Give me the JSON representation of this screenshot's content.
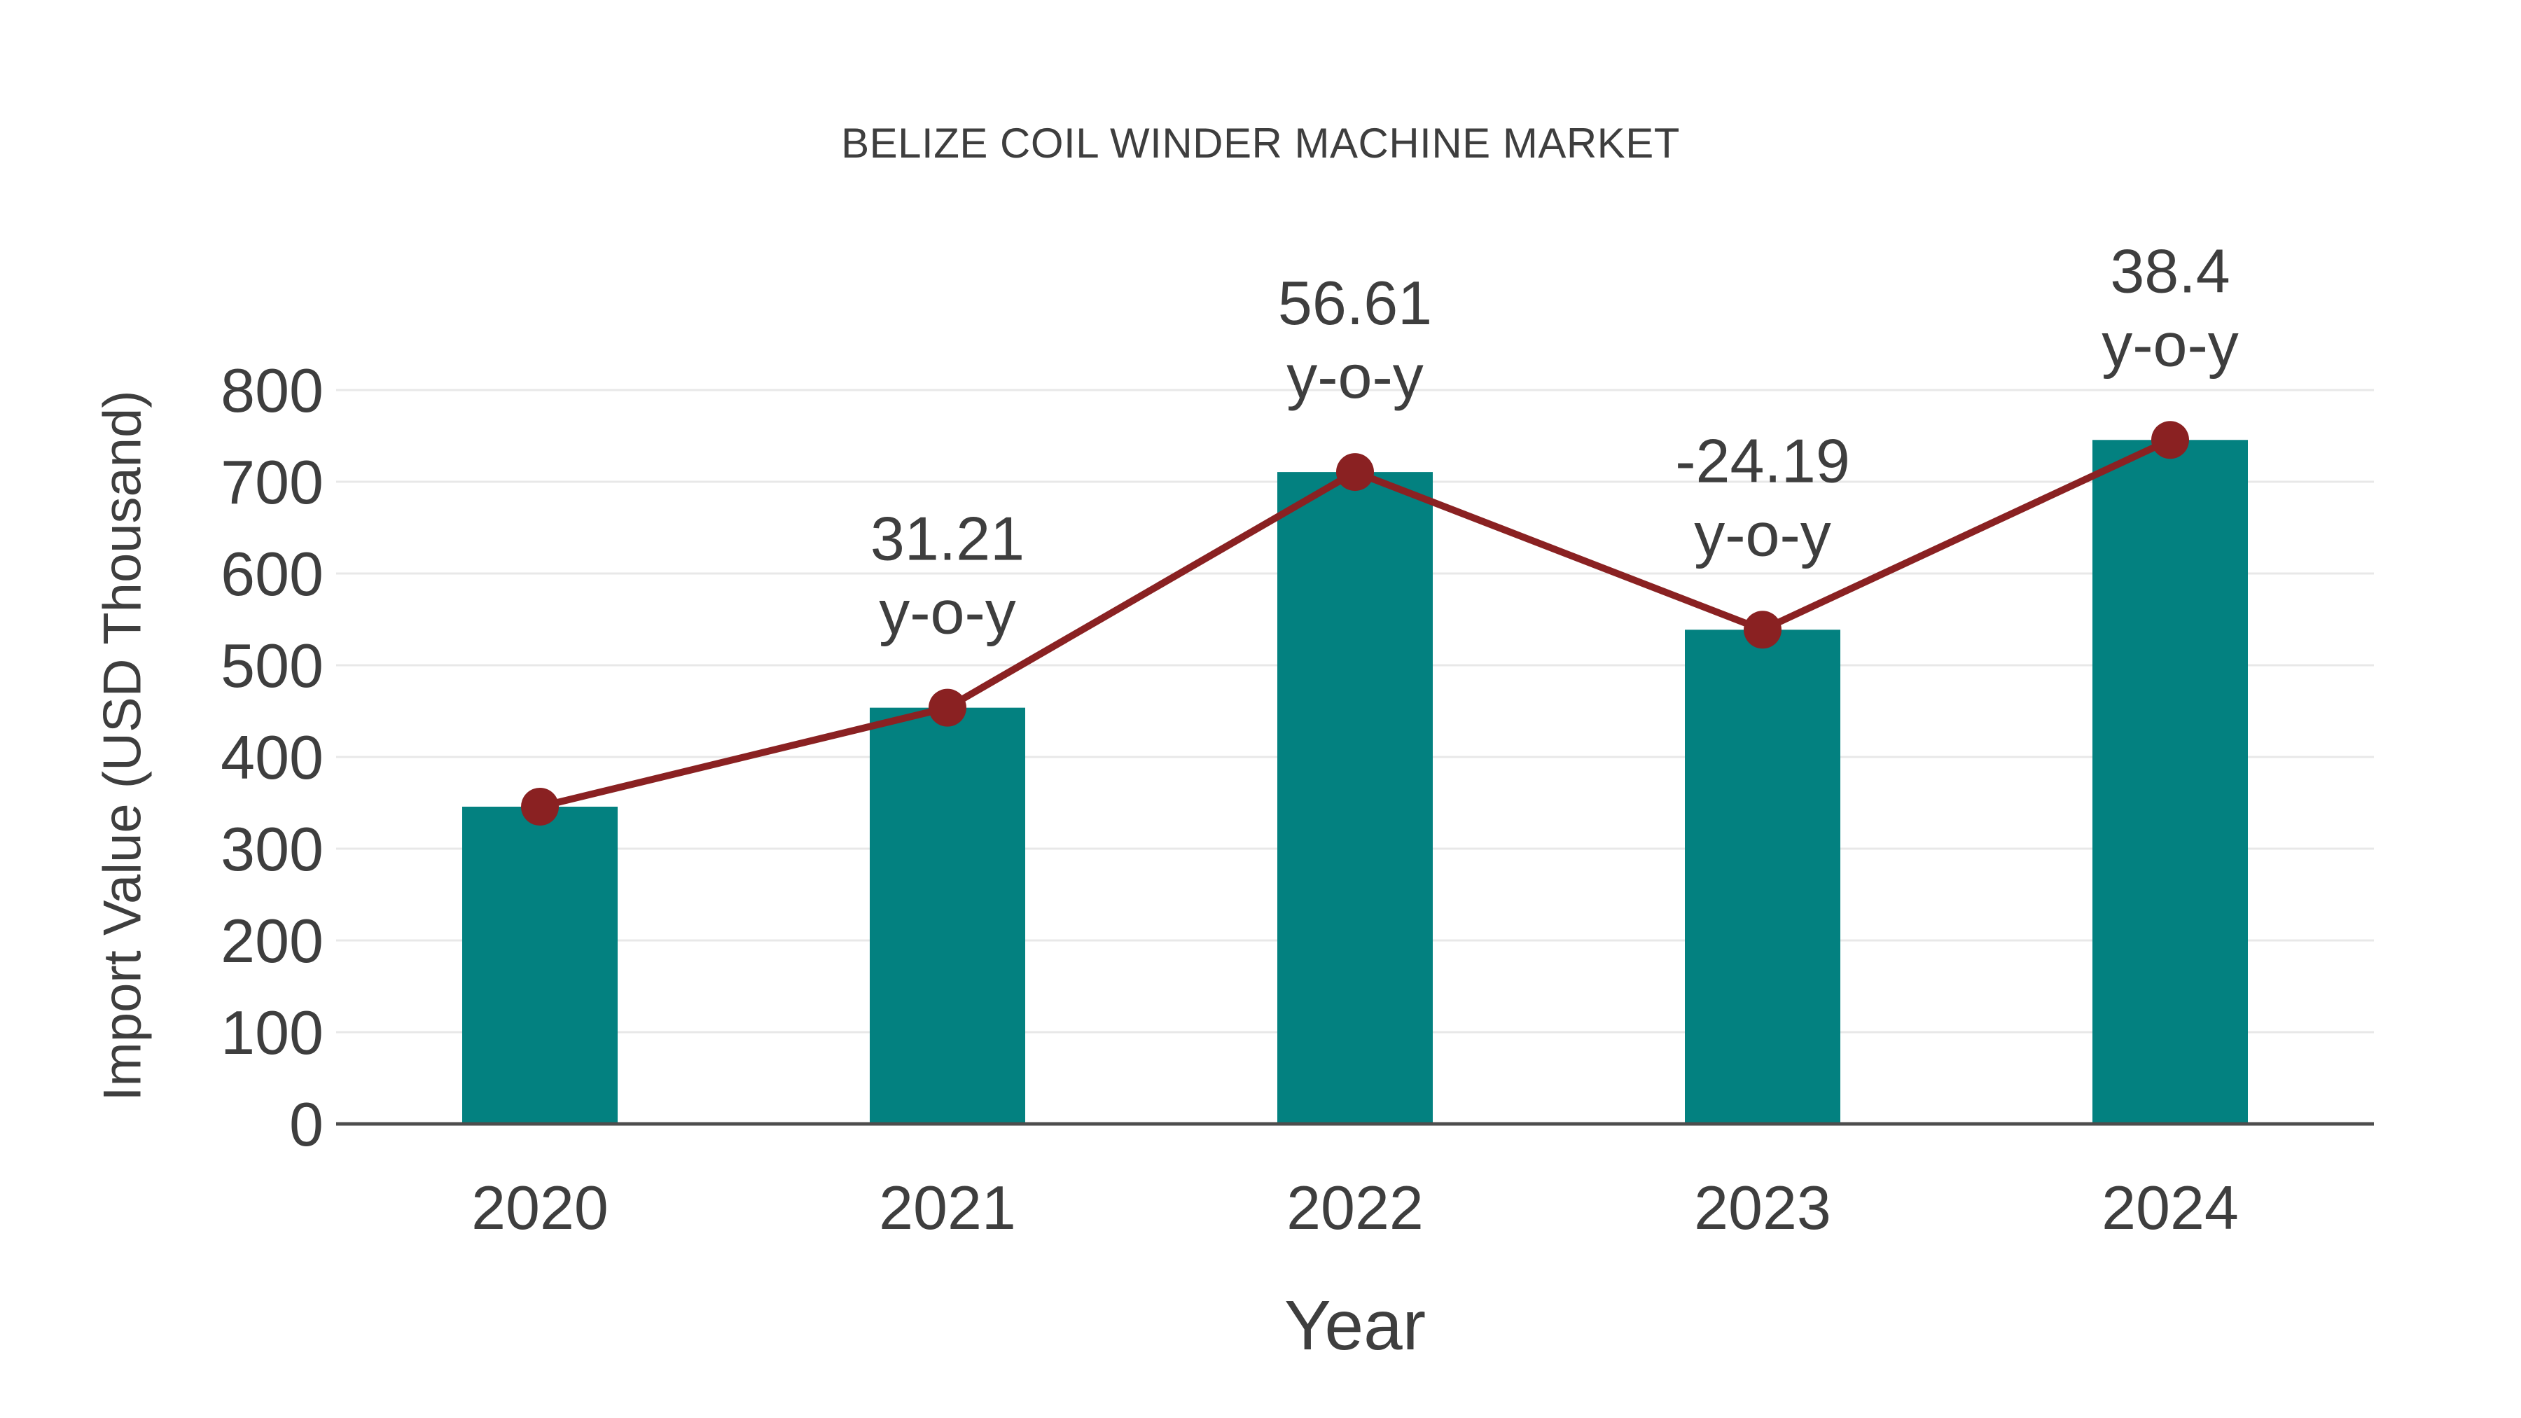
{
  "chart_data": {
    "type": "bar+line",
    "title": "BELIZE COIL WINDER MACHINE MARKET",
    "xlabel": "Year",
    "ylabel": "Import Value (USD Thousand)",
    "categories": [
      "2020",
      "2021",
      "2022",
      "2023",
      "2024"
    ],
    "series": [
      {
        "name": "Import Value bars",
        "type": "bar",
        "values": [
          345.8,
          453.7,
          710.6,
          538.7,
          745.6
        ]
      },
      {
        "name": "Year-over-year growth line",
        "type": "line",
        "values": [
          345.8,
          453.7,
          710.6,
          538.7,
          745.6
        ],
        "growth_labels": [
          null,
          "31.21",
          "56.61",
          "-24.19",
          "38.4"
        ],
        "growth_suffix": "y-o-y"
      }
    ],
    "ylim": [
      0,
      800
    ],
    "yticks": [
      0,
      100,
      200,
      300,
      400,
      500,
      600,
      700,
      800
    ],
    "grid": "horizontal",
    "legend": "none",
    "colors": {
      "bar": "#038180",
      "line": "#8a2122",
      "marker": "#8a2122",
      "text": "#3e3e3e",
      "gridline": "#e8e8e8",
      "axis_line": "#4d4d4d",
      "background": "#ffffff"
    }
  }
}
